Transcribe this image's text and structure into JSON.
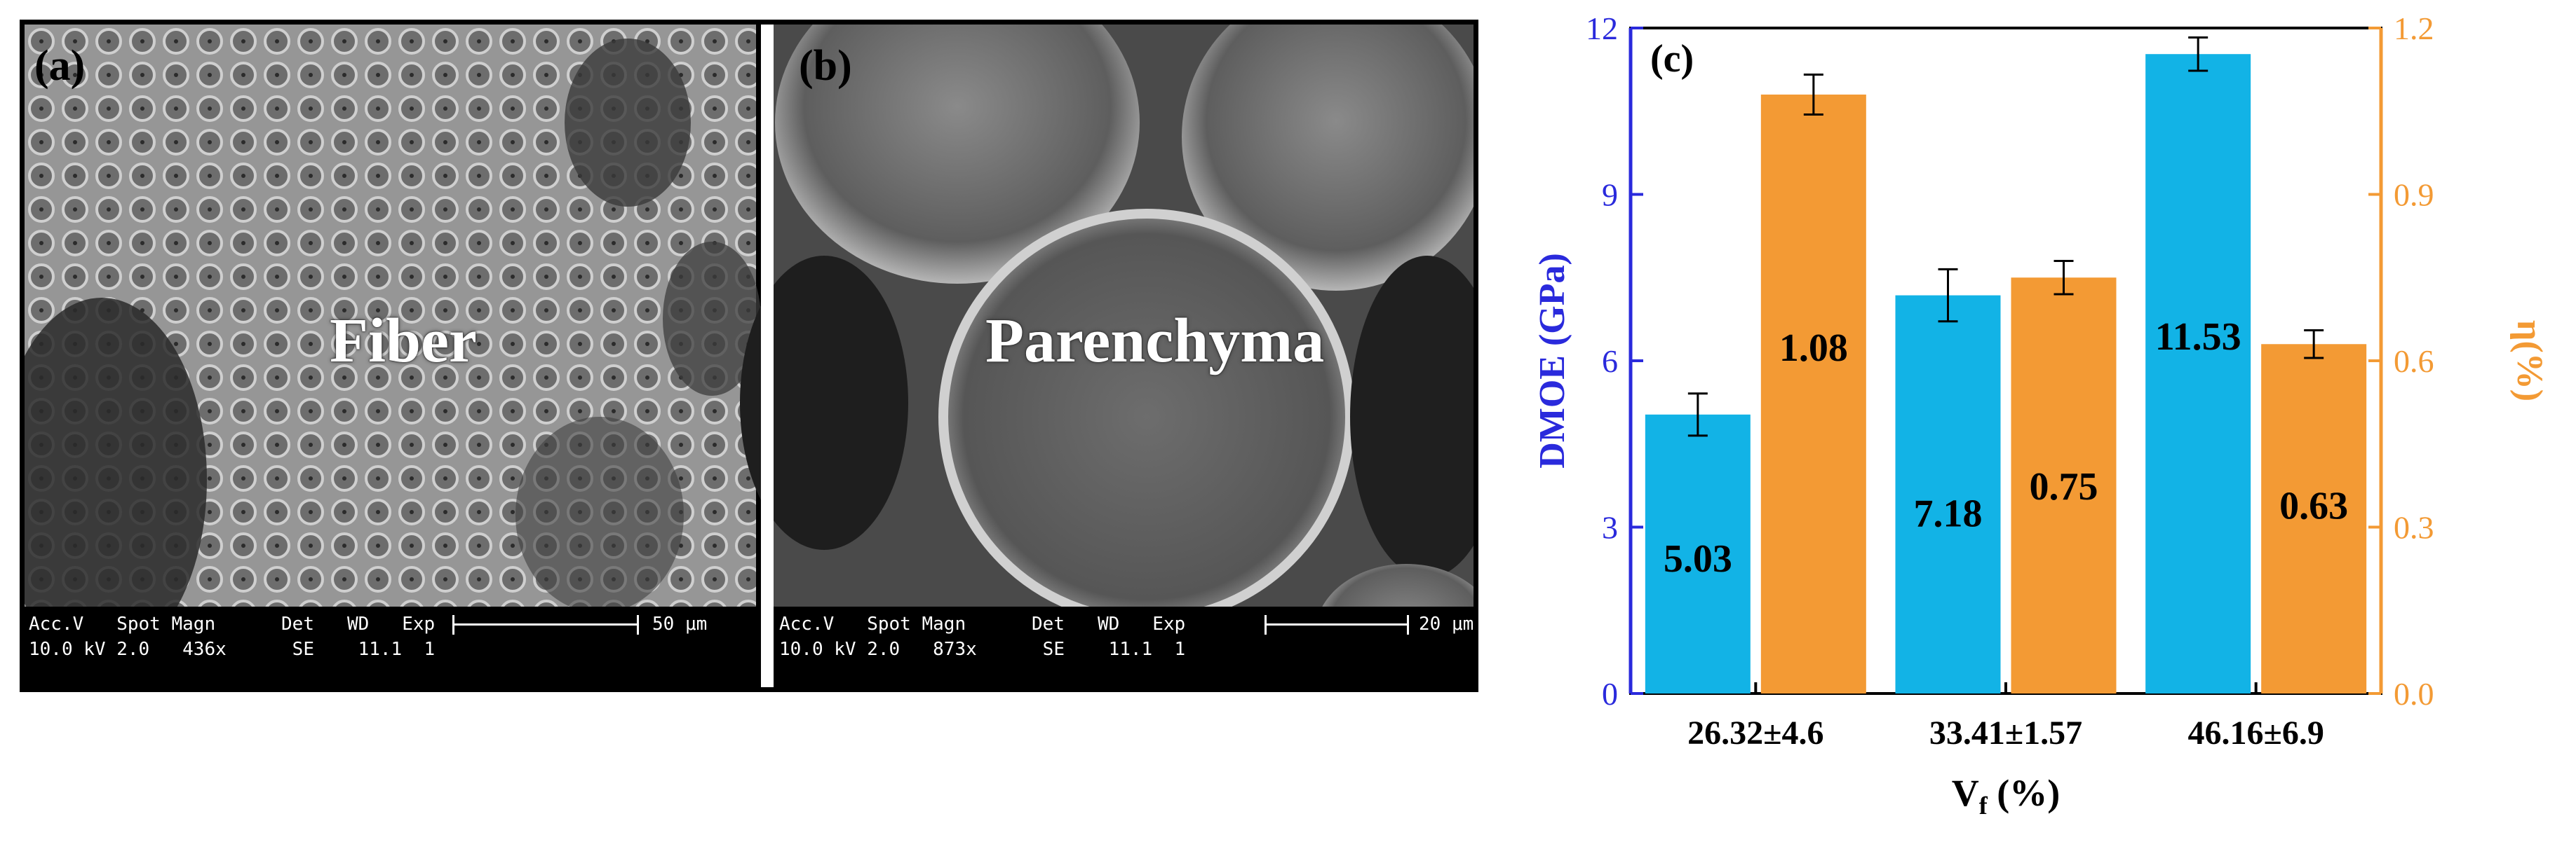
{
  "sem_panels": [
    {
      "label": "(a)",
      "tissue": "Fiber",
      "databar_left": "Acc.V   Spot Magn      Det   WD   Exp",
      "databar_left2": "10.0 kV 2.0   436x      SE    11.1  1",
      "scale": "50 μm"
    },
    {
      "label": "(b)",
      "tissue": "Parenchyma",
      "databar_left": "Acc.V   Spot Magn      Det   WD   Exp",
      "databar_left2": "10.0 kV 2.0   873x      SE    11.1  1",
      "scale": "20 μm"
    }
  ],
  "chart_data": {
    "type": "bar",
    "panel_label": "(c)",
    "categories": [
      "26.32±4.6",
      "33.41±1.57",
      "46.16±6.9"
    ],
    "xlabel_main": "V",
    "xlabel_sub": "f",
    "xlabel_unit": " (%)",
    "ylabel_left": "DMOE (GPa)",
    "ylabel_right": "η(%)",
    "ylim_left": [
      0,
      12
    ],
    "ylim_right": [
      0,
      1.2
    ],
    "yticks_left": [
      0,
      3,
      6,
      9,
      12
    ],
    "yticks_right": [
      "0.0",
      "0.3",
      "0.6",
      "0.9",
      "1.2"
    ],
    "series": [
      {
        "axis": "left",
        "color": "#12b3e6",
        "values": [
          5.03,
          7.18,
          11.53
        ],
        "errors": [
          0.38,
          0.47,
          0.3
        ],
        "labels": [
          "5.03",
          "7.18",
          "11.53"
        ]
      },
      {
        "axis": "right",
        "color": "#f39a34",
        "values": [
          1.08,
          0.75,
          0.63
        ],
        "errors": [
          0.036,
          0.03,
          0.025
        ],
        "labels": [
          "1.08",
          "0.75",
          "0.63"
        ]
      }
    ],
    "left_axis_color": "#2a2adc",
    "right_axis_color": "#f39a34"
  }
}
